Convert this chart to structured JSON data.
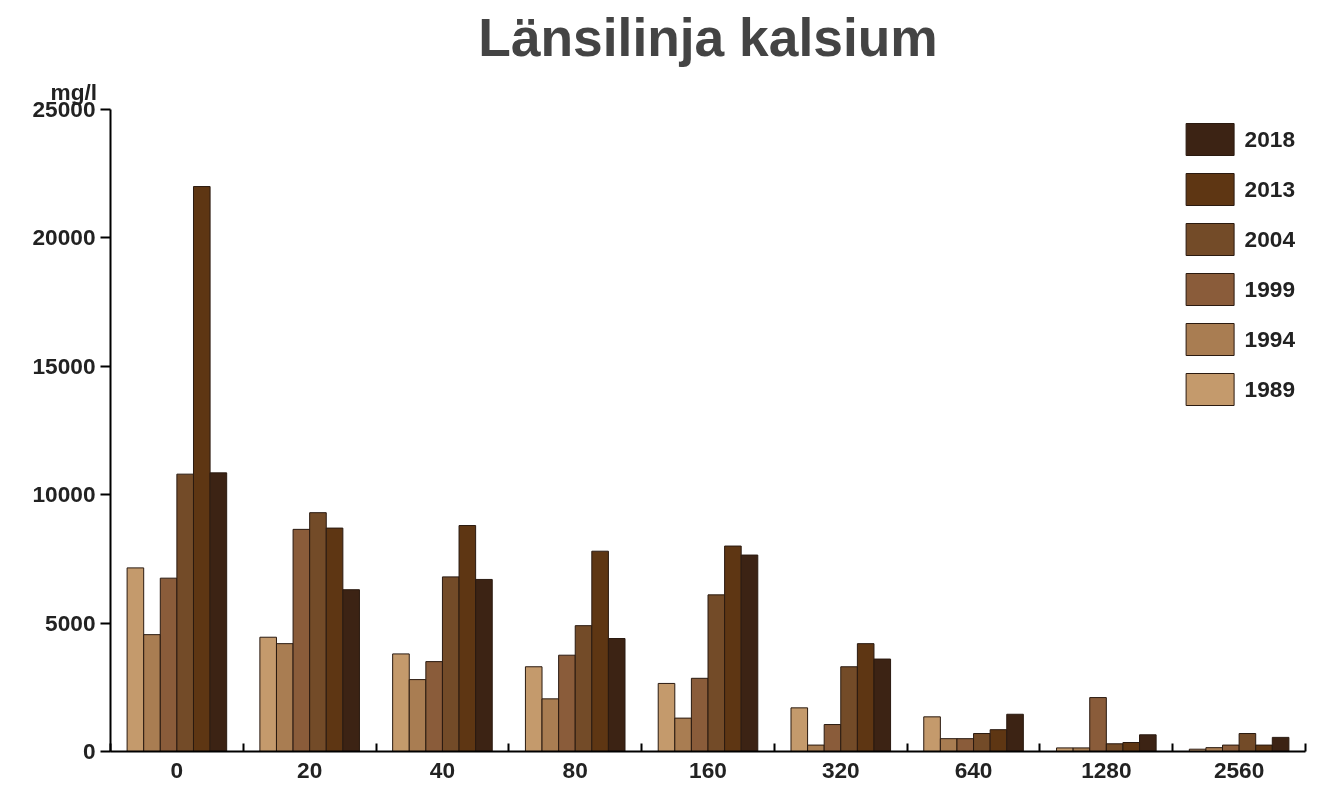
{
  "chart_data": {
    "type": "bar",
    "title": "Länsilinja kalsium",
    "ylabel": "mg/l",
    "categories": [
      "0",
      "20",
      "40",
      "80",
      "160",
      "320",
      "640",
      "1280",
      "2560"
    ],
    "series": [
      {
        "name": "1989",
        "color": "#c49a6c",
        "values": [
          7150,
          4450,
          3800,
          3300,
          2650,
          1700,
          1350,
          140,
          90
        ]
      },
      {
        "name": "1994",
        "color": "#a97d52",
        "values": [
          4550,
          4200,
          2800,
          2050,
          1300,
          250,
          500,
          140,
          150
        ]
      },
      {
        "name": "1999",
        "color": "#8a5c3a",
        "values": [
          6750,
          8650,
          3500,
          3750,
          2850,
          1050,
          500,
          2100,
          250
        ]
      },
      {
        "name": "2004",
        "color": "#734b28",
        "values": [
          10800,
          9300,
          6800,
          4900,
          6100,
          3300,
          700,
          300,
          700
        ]
      },
      {
        "name": "2013",
        "color": "#5e3613",
        "values": [
          22000,
          8700,
          8800,
          7800,
          8000,
          4200,
          850,
          350,
          250
        ]
      },
      {
        "name": "2018",
        "color": "#3c2314",
        "values": [
          10850,
          6300,
          6700,
          4400,
          7650,
          3600,
          1450,
          650,
          550
        ]
      }
    ],
    "ylim": [
      0,
      25000
    ],
    "yticks": [
      0,
      5000,
      10000,
      15000,
      20000,
      25000
    ],
    "grid": false,
    "legend": "top right"
  }
}
